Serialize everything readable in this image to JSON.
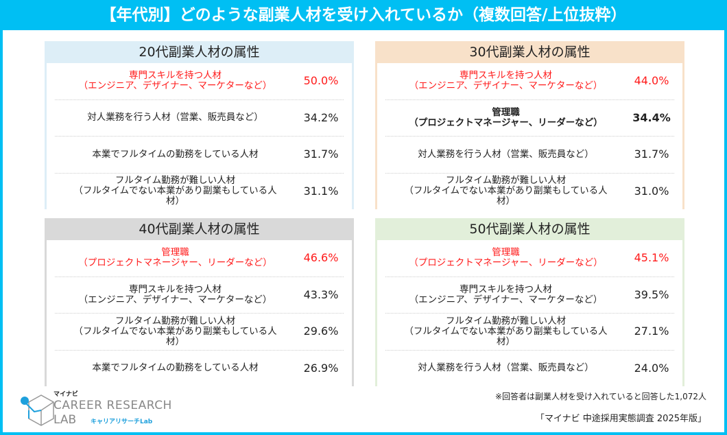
{
  "title": "【年代別】どのような副業人材を受け入れているか（複数回答/上位抜粋）",
  "colors": {
    "accent": "#00bff3",
    "highlight": "#ff1a1a",
    "panel_20": "#ddeef7",
    "panel_30": "#f8e1c9",
    "panel_40": "#d9d9d9",
    "panel_50": "#e2efda"
  },
  "panels": [
    {
      "title": "20代副業人材の属性",
      "rows": [
        {
          "l1": "専門スキルを持つ人材",
          "l2": "（エンジニア、デザイナー、マーケターなど）",
          "value": "50.0%",
          "highlight": true
        },
        {
          "l1": "対人業務を行う人材（営業、販売員など）",
          "l2": "",
          "value": "34.2%"
        },
        {
          "l1": "本業でフルタイムの勤務をしている人材",
          "l2": "",
          "value": "31.7%"
        },
        {
          "l1": "フルタイム勤務が難しい人材",
          "l2": "（フルタイムでない本業があり副業もしている人\n材）",
          "value": "31.1%"
        }
      ]
    },
    {
      "title": "30代副業人材の属性",
      "rows": [
        {
          "l1": "専門スキルを持つ人材",
          "l2": "（エンジニア、デザイナー、マーケターなど）",
          "value": "44.0%",
          "highlight": true
        },
        {
          "l1": "管理職",
          "l2": "（プロジェクトマネージャー、リーダーなど）",
          "value": "34.4%",
          "bold": true
        },
        {
          "l1": "対人業務を行う人材（営業、販売員など）",
          "l2": "",
          "value": "31.7%"
        },
        {
          "l1": "フルタイム勤務が難しい人材",
          "l2": "（フルタイムでない本業があり副業もしている人\n材）",
          "value": "31.0%"
        }
      ]
    },
    {
      "title": "40代副業人材の属性",
      "rows": [
        {
          "l1": "管理職",
          "l2": "（プロジェクトマネージャー、リーダーなど）",
          "value": "46.6%",
          "highlight": true
        },
        {
          "l1": "専門スキルを持つ人材",
          "l2": "（エンジニア、デザイナー、マーケターなど）",
          "value": "43.3%"
        },
        {
          "l1": "フルタイム勤務が難しい人材",
          "l2": "（フルタイムでない本業があり副業もしている人\n材）",
          "value": "29.6%"
        },
        {
          "l1": "本業でフルタイムの勤務をしている人材",
          "l2": "",
          "value": "26.9%"
        }
      ]
    },
    {
      "title": "50代副業人材の属性",
      "rows": [
        {
          "l1": "管理職",
          "l2": "（プロジェクトマネージャー、リーダーなど）",
          "value": "45.1%",
          "highlight": true
        },
        {
          "l1": "専門スキルを持つ人材",
          "l2": "（エンジニア、デザイナー、マーケターなど）",
          "value": "39.5%"
        },
        {
          "l1": "フルタイム勤務が難しい人材",
          "l2": "（フルタイムでない本業があり副業もしている人\n材）",
          "value": "27.1%"
        },
        {
          "l1": "対人業務を行う人材（営業、販売員など）",
          "l2": "",
          "value": "24.0%"
        }
      ]
    }
  ],
  "note": "※回答者は副業人材を受け入れていると回答した1,072人",
  "source": "「マイナビ 中途採用実態調査 2025年版」",
  "logo": {
    "brand": "マイナビ",
    "line1": "CAREER RESEARCH",
    "line2": "LAB",
    "sub": "キャリアリサーチLab"
  }
}
